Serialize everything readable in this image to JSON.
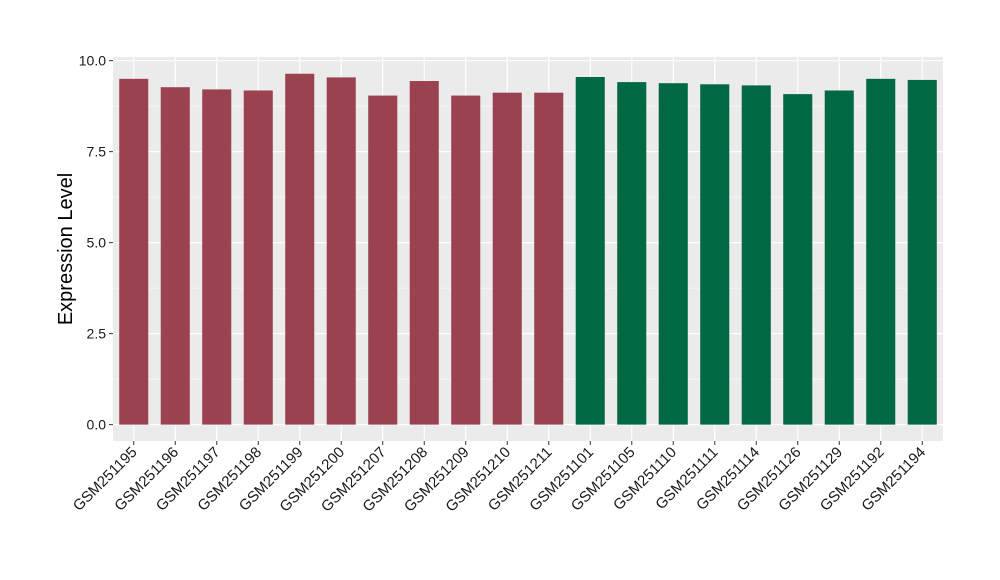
{
  "chart_data": {
    "type": "bar",
    "title": "",
    "xlabel": "",
    "ylabel": "Expression Level",
    "ylim": [
      -0.45,
      10.1
    ],
    "yticks": [
      0.0,
      2.5,
      5.0,
      7.5,
      10.0
    ],
    "ytick_labels": [
      "0.0",
      "2.5",
      "5.0",
      "7.5",
      "10.0"
    ],
    "grid": true,
    "legend": "none",
    "categories": [
      "GSM251195",
      "GSM251196",
      "GSM251197",
      "GSM251198",
      "GSM251199",
      "GSM251200",
      "GSM251207",
      "GSM251208",
      "GSM251209",
      "GSM251210",
      "GSM251211",
      "GSM251101",
      "GSM251105",
      "GSM251110",
      "GSM251111",
      "GSM251114",
      "GSM251126",
      "GSM251129",
      "GSM251192",
      "GSM251194"
    ],
    "values": [
      9.5,
      9.27,
      9.21,
      9.18,
      9.64,
      9.54,
      9.04,
      9.44,
      9.04,
      9.12,
      9.12,
      9.55,
      9.41,
      9.38,
      9.35,
      9.32,
      9.08,
      9.18,
      9.5,
      9.47
    ],
    "bar_colors": [
      "#9a4250",
      "#9a4250",
      "#9a4250",
      "#9a4250",
      "#9a4250",
      "#9a4250",
      "#9a4250",
      "#9a4250",
      "#9a4250",
      "#9a4250",
      "#9a4250",
      "#006843",
      "#006843",
      "#006843",
      "#006843",
      "#006843",
      "#006843",
      "#006843",
      "#006843",
      "#006843"
    ],
    "panel_background": "#ebebeb",
    "grid_color": "#ffffff"
  }
}
